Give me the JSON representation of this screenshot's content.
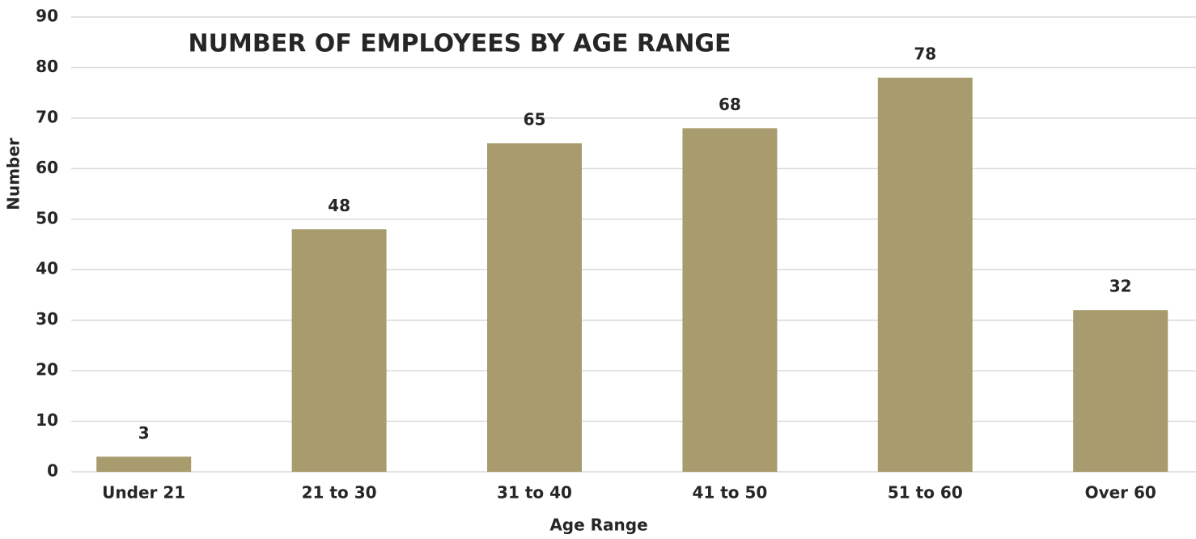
{
  "chart_data": {
    "type": "bar",
    "title": "NUMBER OF EMPLOYEES BY AGE RANGE",
    "x_label": "Age Range",
    "y_label": "Number",
    "categories": [
      "Under 21",
      "21 to 30",
      "31 to 40",
      "41 to 50",
      "51 to 60",
      "Over 60"
    ],
    "values": [
      3,
      48,
      65,
      68,
      78,
      32
    ],
    "color": "#a89c6e",
    "ylim": [
      0,
      90
    ],
    "yticks": [
      0,
      10,
      20,
      30,
      40,
      50,
      60,
      70,
      80,
      90
    ],
    "grid": true
  }
}
